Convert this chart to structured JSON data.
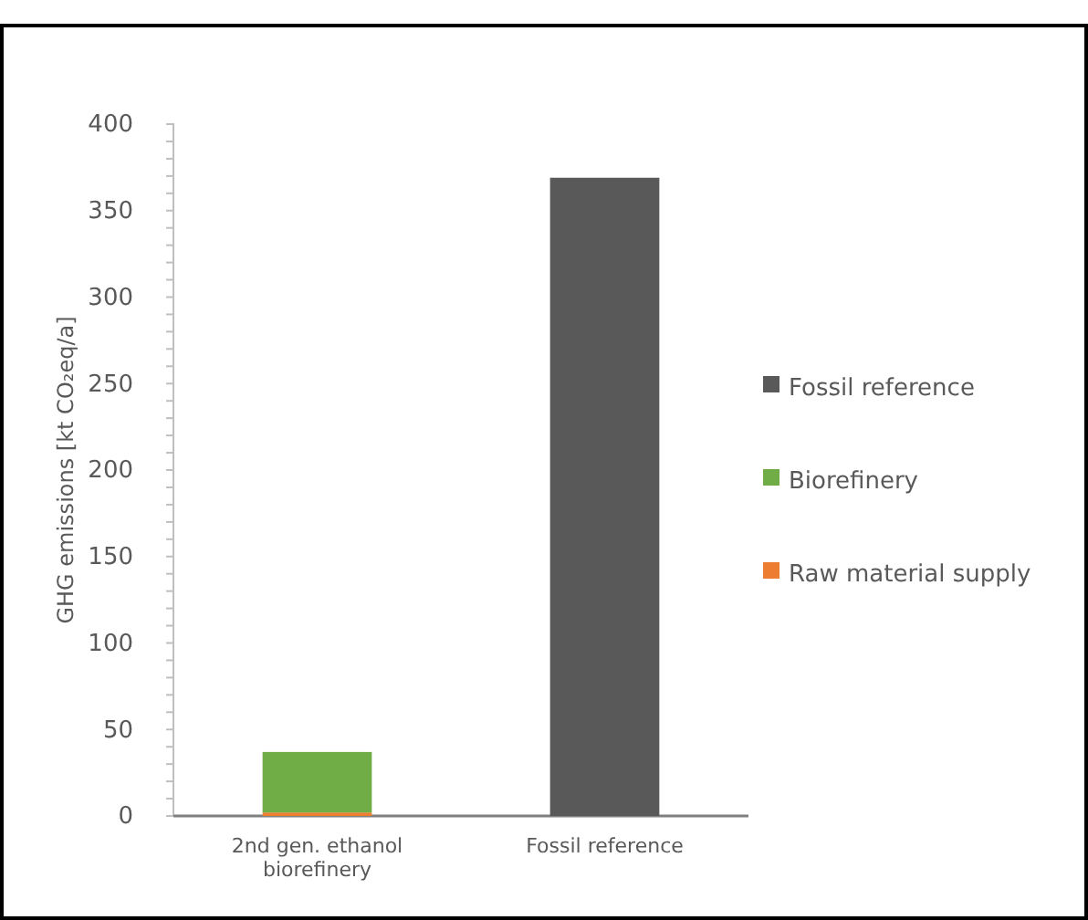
{
  "chart_data": {
    "type": "bar",
    "stacked": true,
    "ylabel": "GHG emissions [kt CO₂eq/a]",
    "categories": [
      "2nd gen. ethanol biorefinery",
      "Fossil reference"
    ],
    "series": [
      {
        "name": "Raw material supply",
        "color": "#ed7d31",
        "values": [
          2,
          null
        ]
      },
      {
        "name": "Biorefinery",
        "color": "#70ad47",
        "values": [
          35,
          null
        ]
      },
      {
        "name": "Fossil reference",
        "color": "#595959",
        "values": [
          null,
          369
        ]
      }
    ],
    "ylim": [
      0,
      400
    ],
    "yticks": [
      0,
      {
        "value": 10,
        "label": null
      },
      {
        "value": 20,
        "label": null
      },
      {
        "value": 30,
        "label": null
      },
      {
        "value": 40,
        "label": null
      },
      50,
      {
        "value": 60,
        "label": null
      },
      {
        "value": 70,
        "label": null
      },
      {
        "value": 80,
        "label": null
      },
      {
        "value": 90,
        "label": null
      },
      100,
      {
        "value": 110,
        "label": null
      },
      {
        "value": 120,
        "label": null
      },
      {
        "value": 130,
        "label": null
      },
      {
        "value": 140,
        "label": null
      },
      150,
      {
        "value": 160,
        "label": null
      },
      {
        "value": 170,
        "label": null
      },
      {
        "value": 180,
        "label": null
      },
      {
        "value": 190,
        "label": null
      },
      200,
      {
        "value": 210,
        "label": null
      },
      {
        "value": 220,
        "label": null
      },
      {
        "value": 230,
        "label": null
      },
      {
        "value": 240,
        "label": null
      },
      250,
      {
        "value": 260,
        "label": null
      },
      {
        "value": 270,
        "label": null
      },
      {
        "value": 280,
        "label": null
      },
      {
        "value": 290,
        "label": null
      },
      300,
      {
        "value": 310,
        "label": null
      },
      {
        "value": 320,
        "label": null
      },
      {
        "value": 330,
        "label": null
      },
      {
        "value": 340,
        "label": null
      },
      350,
      {
        "value": 360,
        "label": null
      },
      {
        "value": 370,
        "label": null
      },
      {
        "value": 380,
        "label": null
      },
      {
        "value": 390,
        "label": null
      },
      400
    ],
    "grid": false,
    "legend": "right"
  }
}
